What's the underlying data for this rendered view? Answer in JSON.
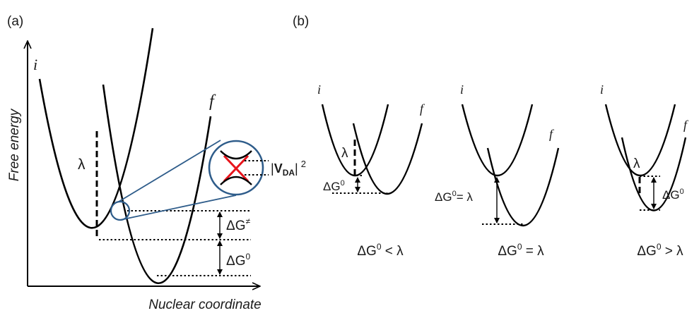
{
  "panel_a": {
    "tag": "(a)",
    "y_axis_label": "Free energy",
    "x_axis_label": "Nuclear coordinate",
    "curve_i": "i",
    "curve_f": "f",
    "lambda": "λ",
    "coupling_prefix": "|",
    "coupling_symbol": "V",
    "coupling_subscript": "DA",
    "coupling_suffix": "|",
    "coupling_power": "2",
    "dg_activation": "ΔG",
    "dg_activation_sup": "≠",
    "dg_zero": "ΔG",
    "dg_zero_sup": "0",
    "colors": {
      "crossing": "#e8141b",
      "zoom_circle": "#2e5c8a"
    }
  },
  "panel_b": {
    "tag": "(b)",
    "cases": [
      {
        "i": "i",
        "f": "f",
        "lambda": "λ",
        "dg": "ΔG",
        "dg_sup": "0",
        "caption_a": "ΔG",
        "caption_sup": "0",
        "caption_b": " < λ"
      },
      {
        "i": "i",
        "f": "f",
        "dg": "ΔG",
        "dg_sup": "0",
        "dg_rest": "= λ",
        "caption_a": "ΔG",
        "caption_sup": "0",
        "caption_b": " = λ"
      },
      {
        "i": "i",
        "f": "f",
        "lambda": "λ",
        "dg": "ΔG",
        "dg_sup": "0",
        "caption_a": "ΔG",
        "caption_sup": "0",
        "caption_b": " > λ"
      }
    ]
  }
}
